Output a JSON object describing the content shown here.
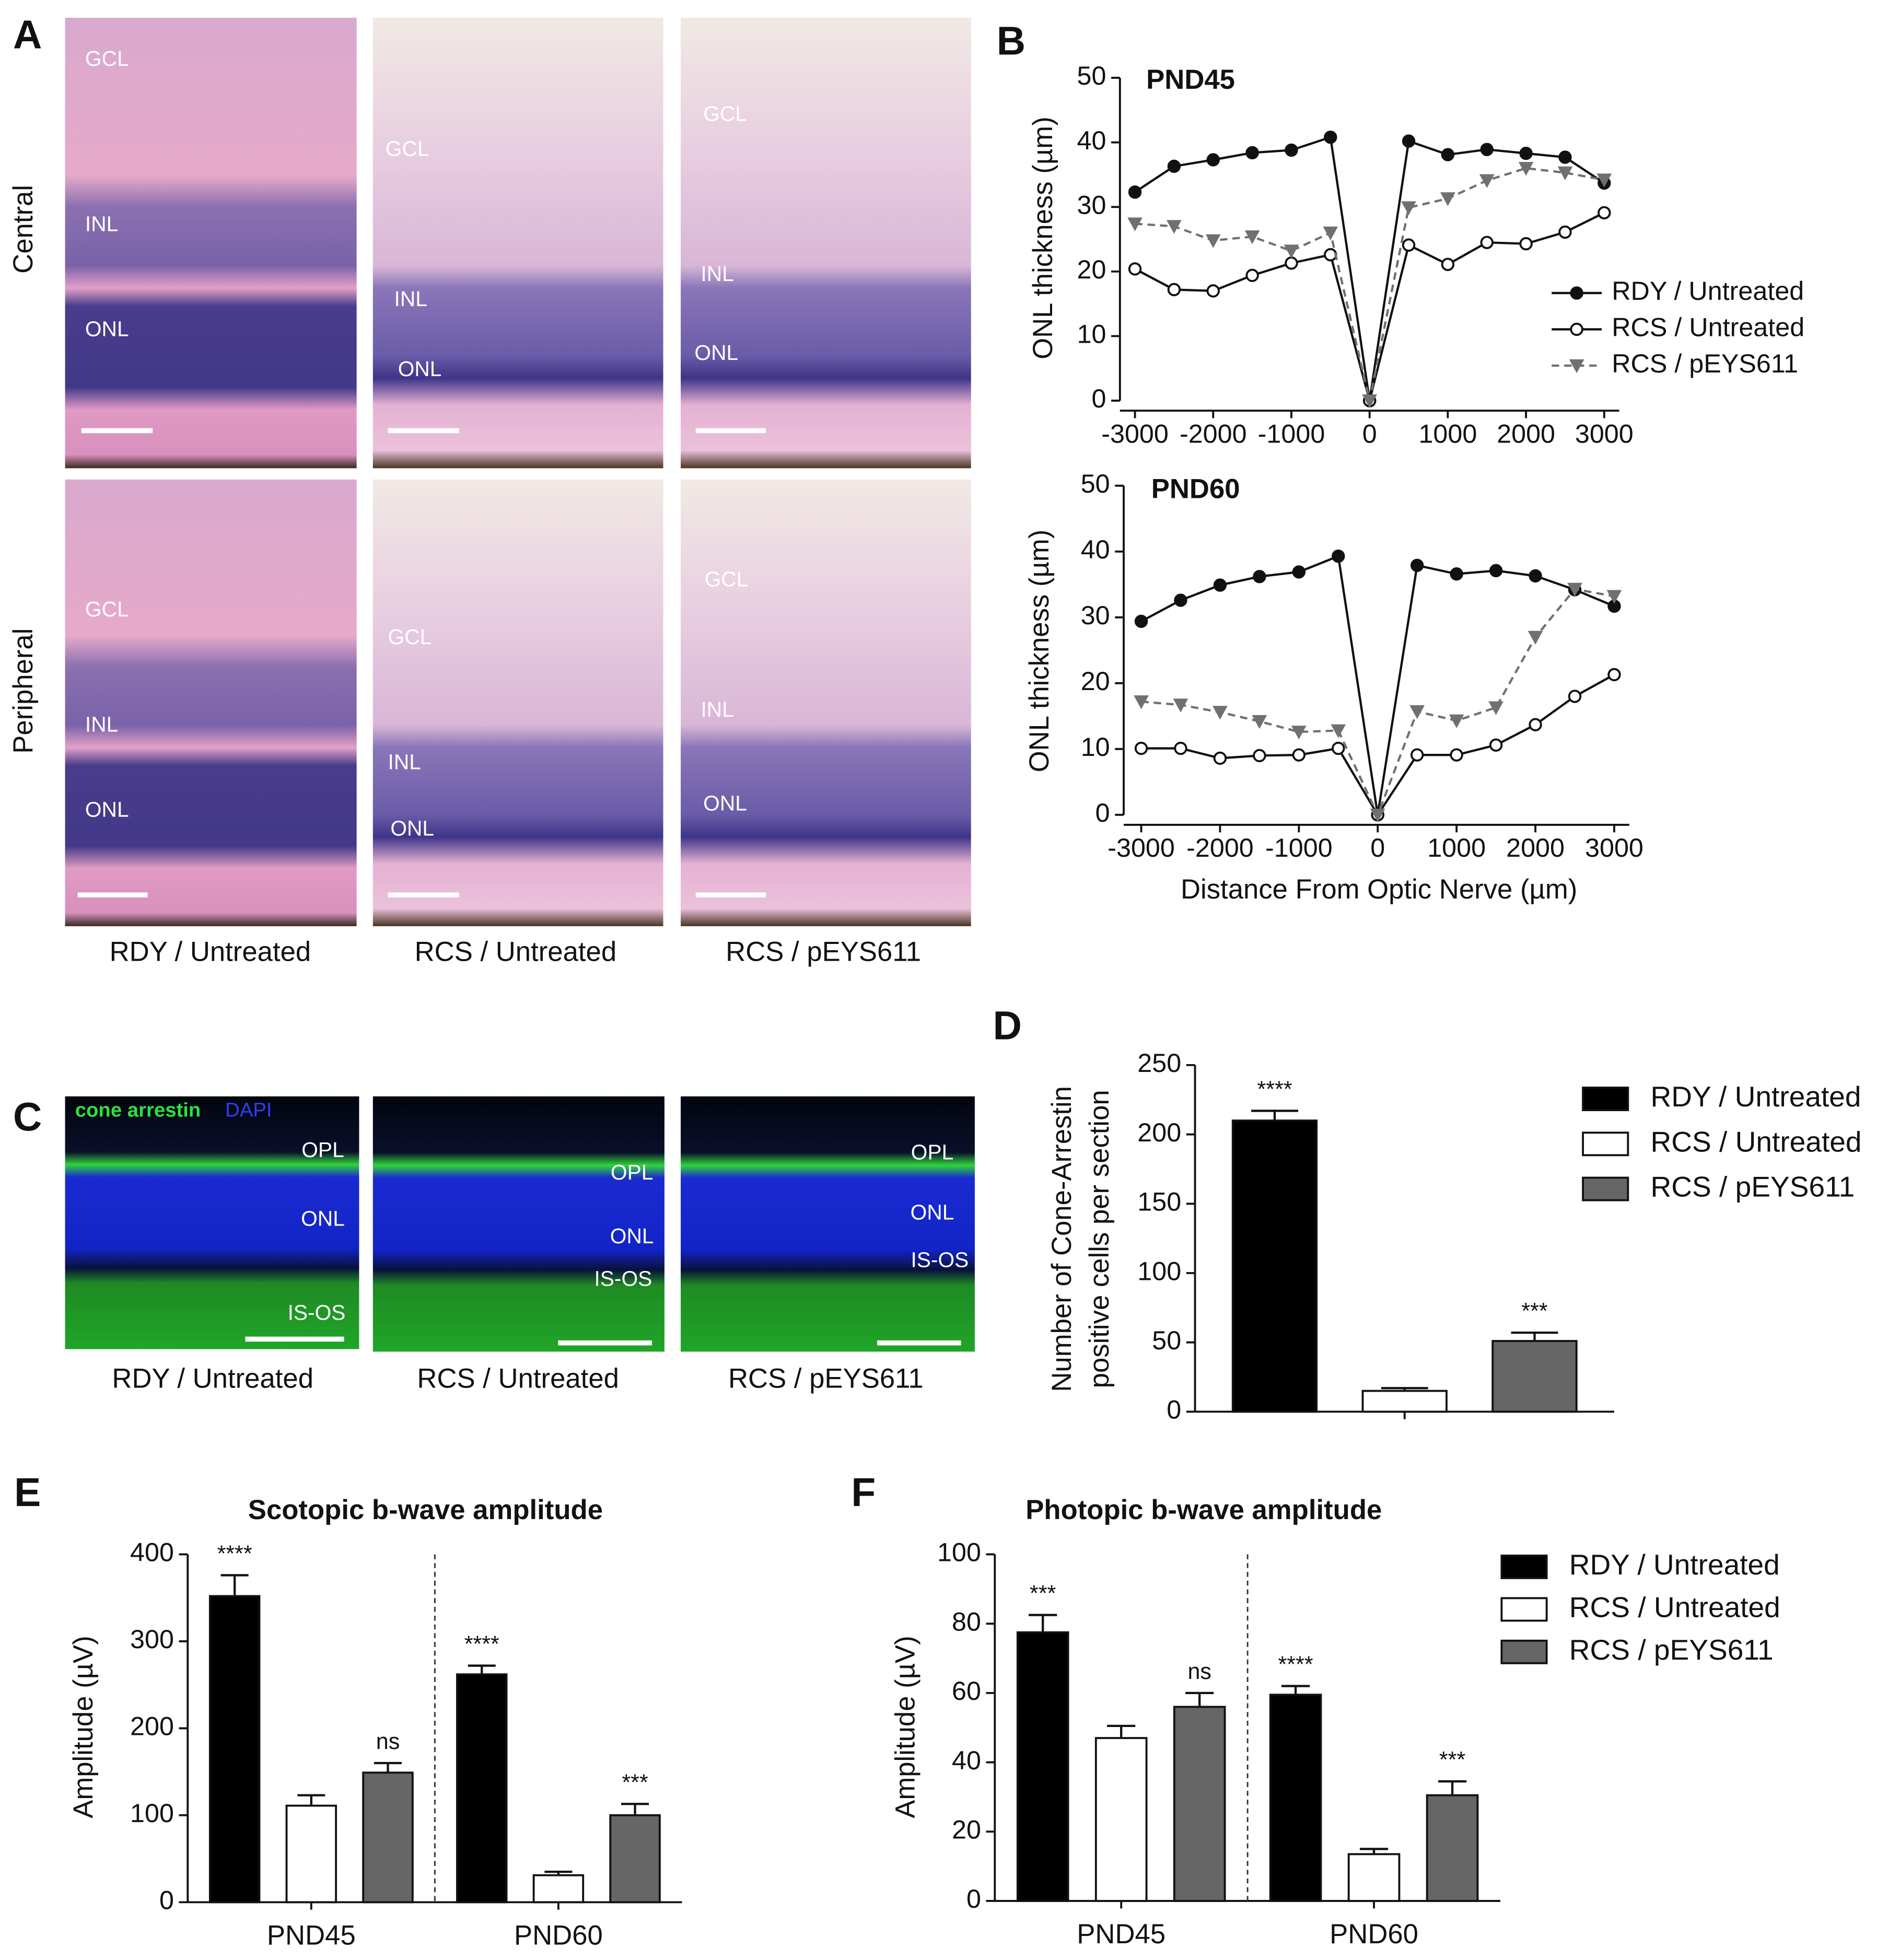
{
  "panel_letters": [
    "A",
    "B",
    "C",
    "D",
    "E",
    "F"
  ],
  "histology": {
    "rows": [
      "Central",
      "Peripheral"
    ],
    "columns": [
      "RDY / Untreated",
      "RCS / Untreated",
      "RCS / pEYS611"
    ],
    "layer_labels": [
      [
        [
          "GCL",
          "INL",
          "ONL"
        ],
        [
          "GCL",
          "INL",
          "ONL"
        ],
        [
          "GCL",
          "INL",
          "ONL"
        ]
      ],
      [
        [
          "GCL",
          "INL",
          "ONL"
        ],
        [
          "GCL",
          "INL",
          "ONL"
        ],
        [
          "GCL",
          "INL",
          "ONL"
        ]
      ]
    ]
  },
  "immunostaining": {
    "stains": [
      "cone arrestin",
      "DAPI"
    ],
    "columns": [
      "RDY / Untreated",
      "RCS / Untreated",
      "RCS / pEYS611"
    ],
    "layer_labels": [
      [
        "OPL",
        "ONL",
        "IS-OS"
      ],
      [
        "OPL",
        "ONL",
        "IS-OS"
      ],
      [
        "OPL",
        "ONL",
        "IS-OS"
      ]
    ]
  },
  "chart_data": [
    {
      "type": "line",
      "title": "PND45",
      "y_label": "ONL thickness (µm)",
      "x": [
        -3000,
        -2500,
        -2000,
        -1500,
        -1000,
        -500,
        0,
        500,
        1000,
        1500,
        2000,
        2500,
        3000
      ],
      "xlim": [
        -3000,
        3000
      ],
      "xticks": [
        -3000,
        -2000,
        -1000,
        0,
        1000,
        2000,
        3000
      ],
      "ylim": [
        0,
        50
      ],
      "yticks": [
        0,
        10,
        20,
        30,
        40,
        50
      ],
      "legend": "right",
      "series": [
        {
          "name": "RDY / Untreated",
          "color": "#111111",
          "marker": "filled-circle",
          "dashed": false,
          "values": [
            32.3,
            36.3,
            37.3,
            38.4,
            38.8,
            40.8,
            0,
            40.2,
            38.1,
            38.9,
            38.3,
            37.7,
            33.7
          ]
        },
        {
          "name": "RCS / Untreated",
          "color": "#111111",
          "marker": "open-circle",
          "dashed": false,
          "values": [
            20.4,
            17.2,
            17.0,
            19.4,
            21.3,
            22.6,
            0,
            24.1,
            21.1,
            24.5,
            24.3,
            26.1,
            29.1
          ]
        },
        {
          "name": "RCS / pEYS611",
          "color": "#707070",
          "marker": "triangle",
          "dashed": true,
          "values": [
            27.4,
            27.0,
            24.8,
            25.4,
            23.2,
            26.0,
            0,
            29.9,
            31.3,
            34.1,
            36.0,
            35.3,
            34.2
          ]
        }
      ]
    },
    {
      "type": "line",
      "title": "PND60",
      "y_label": "ONL thickness (µm)",
      "x_label": "Distance From Optic Nerve (µm)",
      "x": [
        -3000,
        -2500,
        -2000,
        -1500,
        -1000,
        -500,
        0,
        500,
        1000,
        1500,
        2000,
        2500,
        3000
      ],
      "xlim": [
        -3000,
        3000
      ],
      "xticks": [
        -3000,
        -2000,
        -1000,
        0,
        1000,
        2000,
        3000
      ],
      "ylim": [
        0,
        50
      ],
      "yticks": [
        0,
        10,
        20,
        30,
        40,
        50
      ],
      "series": [
        {
          "color": "#111111",
          "marker": "filled-circle",
          "dashed": false,
          "values": [
            29.4,
            32.6,
            34.9,
            36.2,
            36.9,
            39.3,
            0,
            37.9,
            36.6,
            37.1,
            36.3,
            34.2,
            31.7
          ]
        },
        {
          "color": "#111111",
          "marker": "open-circle",
          "dashed": false,
          "values": [
            10.1,
            10.1,
            8.6,
            9.0,
            9.1,
            10.1,
            0,
            9.1,
            9.1,
            10.6,
            13.7,
            18.0,
            21.3
          ]
        },
        {
          "color": "#707070",
          "marker": "triangle",
          "dashed": true,
          "values": [
            17.2,
            16.7,
            15.6,
            14.2,
            12.6,
            12.8,
            0,
            15.7,
            14.3,
            16.3,
            27.0,
            34.3,
            33.2
          ]
        }
      ]
    },
    {
      "type": "bar",
      "y_label": [
        "Number of Cone-Arrestin",
        "positive cells per section"
      ],
      "ylim": [
        0,
        250
      ],
      "yticks": [
        0,
        50,
        100,
        150,
        200,
        250
      ],
      "legend": "right",
      "series": [
        {
          "name": "RDY / Untreated",
          "color": "#000000",
          "values": [
            210
          ],
          "errors": [
            7
          ],
          "significance": [
            "****"
          ]
        },
        {
          "name": "RCS / Untreated",
          "color": "#ffffff",
          "values": [
            15
          ],
          "errors": [
            2
          ]
        },
        {
          "name": "RCS / pEYS611",
          "color": "#666666",
          "values": [
            51
          ],
          "errors": [
            6
          ],
          "significance": [
            "***"
          ]
        }
      ]
    },
    {
      "type": "bar",
      "title": "Scotopic b-wave amplitude",
      "y_label": "Amplitude (µV)",
      "categories": [
        "PND45",
        "PND60"
      ],
      "divider": true,
      "ylim": [
        0,
        400
      ],
      "yticks": [
        0,
        100,
        200,
        300,
        400
      ],
      "series": [
        {
          "color": "#000000",
          "values": [
            352,
            262
          ],
          "errors": [
            24,
            10
          ],
          "significance": [
            "****",
            "****"
          ]
        },
        {
          "color": "#ffffff",
          "values": [
            111,
            31
          ],
          "errors": [
            12,
            4
          ]
        },
        {
          "color": "#666666",
          "values": [
            149,
            100
          ],
          "errors": [
            11,
            13
          ],
          "significance": [
            "ns",
            "***"
          ]
        }
      ]
    },
    {
      "type": "bar",
      "title": "Photopic b-wave amplitude",
      "y_label": "Amplitude (µV)",
      "categories": [
        "PND45",
        "PND60"
      ],
      "divider": true,
      "legend": "right",
      "ylim": [
        0,
        100
      ],
      "yticks": [
        0,
        20,
        40,
        60,
        80,
        100
      ],
      "series": [
        {
          "name": "RDY / Untreated",
          "color": "#000000",
          "values": [
            77.5,
            59.5
          ],
          "errors": [
            5,
            2.5
          ],
          "significance": [
            "***",
            "****"
          ]
        },
        {
          "name": "RCS / Untreated",
          "color": "#ffffff",
          "values": [
            47,
            13.5
          ],
          "errors": [
            3.5,
            1.5
          ]
        },
        {
          "name": "RCS / pEYS611",
          "color": "#666666",
          "values": [
            56,
            30.5
          ],
          "errors": [
            4,
            4
          ],
          "significance": [
            "ns",
            "***"
          ]
        }
      ]
    }
  ]
}
